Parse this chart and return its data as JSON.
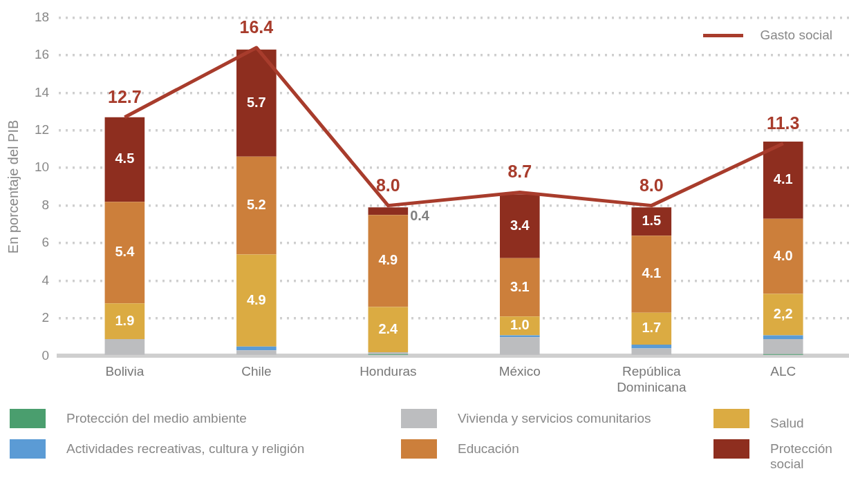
{
  "chart_data": {
    "type": "bar",
    "stacked": true,
    "ylabel": "En porcentaje del PIB",
    "categories": [
      "Bolivia",
      "Chile",
      "Honduras",
      "México",
      "República Dominicana",
      "ALC"
    ],
    "ylim": [
      0,
      18
    ],
    "yticks": [
      0,
      2,
      4,
      6,
      8,
      10,
      12,
      14,
      16,
      18
    ],
    "grid": "y",
    "legend": "bottom",
    "series": [
      {
        "name": "Protección del medio ambiente",
        "color": "#4a9e6e",
        "values": [
          0,
          0,
          0.1,
          0,
          0,
          0.1
        ]
      },
      {
        "name": "Vivienda y servicios comunitarios",
        "color": "#bcbdbf",
        "values": [
          0.9,
          0.3,
          0.1,
          1.0,
          0.4,
          0.8
        ]
      },
      {
        "name": "Actividades recreativas, cultura y religión",
        "color": "#5b9bd5",
        "values": [
          0,
          0.2,
          0,
          0.1,
          0.2,
          0.2
        ]
      },
      {
        "name": "Salud",
        "color": "#dbab42",
        "values": [
          1.9,
          4.9,
          2.4,
          1.0,
          1.7,
          2.2
        ],
        "value_labels": [
          "1.9",
          "4.9",
          "2.4",
          "1.0",
          "1.7",
          "2,2"
        ]
      },
      {
        "name": "Educación",
        "color": "#cc7f3b",
        "values": [
          5.4,
          5.2,
          4.9,
          3.1,
          4.1,
          4.0
        ],
        "value_labels": [
          "5.4",
          "5.2",
          "4.9",
          "3.1",
          "4.1",
          "4.0"
        ]
      },
      {
        "name": "Protección social",
        "color": "#8e2e1f",
        "values": [
          4.5,
          5.7,
          0.4,
          3.4,
          1.5,
          4.1
        ],
        "value_labels": [
          "4.5",
          "5.7",
          "0.4",
          "3.4",
          "1.5",
          "4.1"
        ]
      },
      {
        "name": "Gasto social",
        "type": "line",
        "color": "#a83c2c",
        "values": [
          12.7,
          16.4,
          8.0,
          8.7,
          8.0,
          11.3
        ],
        "value_labels": [
          "12.7",
          "16.4",
          "8.0",
          "8.7",
          "8.0",
          "11.3"
        ]
      }
    ]
  }
}
